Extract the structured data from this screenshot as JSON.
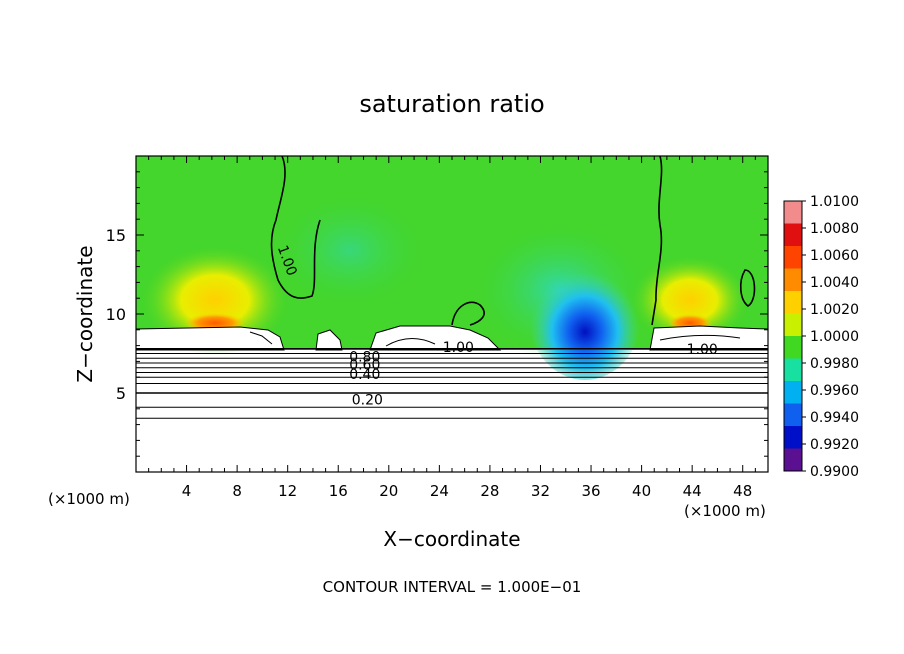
{
  "chart_data": {
    "type": "heatmap",
    "title": "saturation ratio",
    "xlabel": "X−coordinate",
    "ylabel": "Z−coordinate",
    "x_unit_left": "(×1000 m)",
    "x_unit_right": "(×1000 m)",
    "footer": "CONTOUR INTERVAL = 1.000E−01",
    "xlim": [
      0,
      50
    ],
    "ylim": [
      0,
      20
    ],
    "x_ticks": [
      4,
      8,
      12,
      16,
      20,
      24,
      28,
      32,
      36,
      40,
      44,
      48
    ],
    "y_ticks": [
      5,
      10,
      15
    ],
    "colorbar": {
      "labels": [
        "1.0100",
        "1.0080",
        "1.0060",
        "1.0040",
        "1.0020",
        "1.0000",
        "0.9980",
        "0.9960",
        "0.9940",
        "0.9920",
        "0.9900"
      ],
      "colors": [
        "#f28c8c",
        "#e01010",
        "#ff4400",
        "#ff8c00",
        "#ffd000",
        "#c8f000",
        "#40d820",
        "#18e0a0",
        "#00b0f0",
        "#1060f0",
        "#0010c8",
        "#5a1090"
      ]
    },
    "contour_labels": [
      {
        "text": "1.00"
      },
      {
        "text": "1.00"
      },
      {
        "text": "1.00"
      },
      {
        "text": "0.80"
      },
      {
        "text": "0.60"
      },
      {
        "text": "0.40"
      },
      {
        "text": "0.20"
      }
    ],
    "contour_levels_z": [
      3.4,
      4.1,
      5.0,
      5.6,
      6.0,
      6.3,
      6.6,
      6.9,
      7.2,
      7.5,
      7.8
    ],
    "cloud_top_z": 9.0,
    "cloud_base_z": 7.9
  }
}
